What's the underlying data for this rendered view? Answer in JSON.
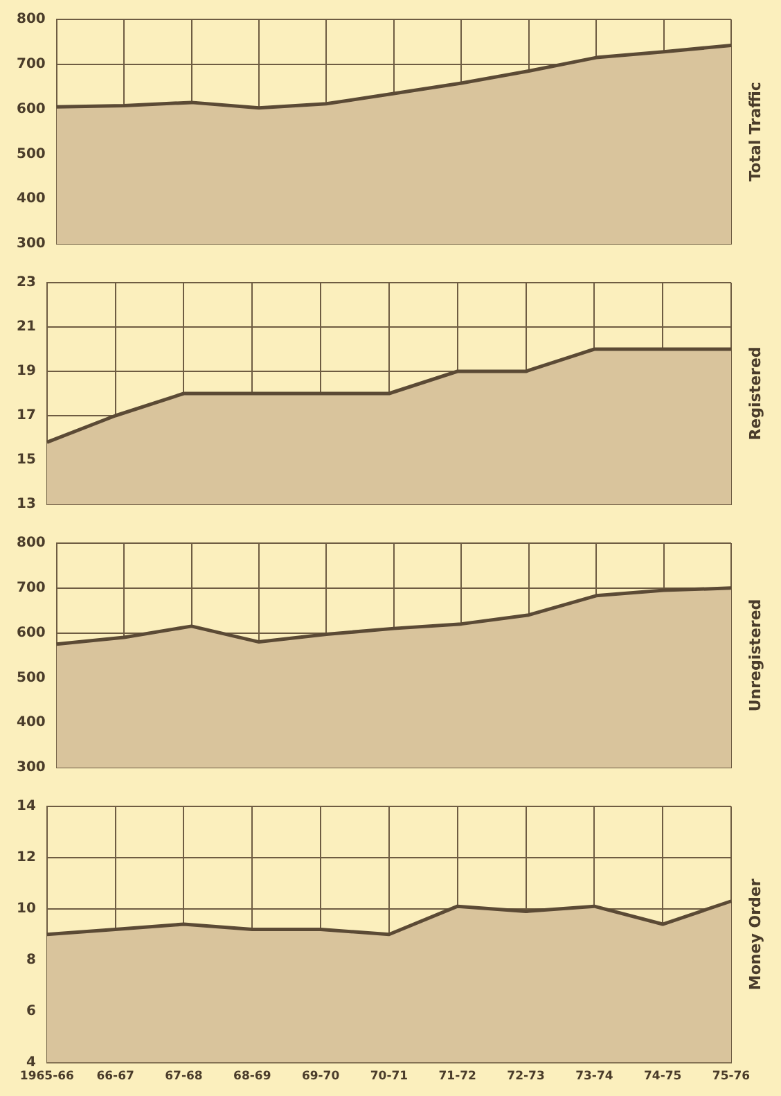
{
  "chart_data": [
    {
      "type": "area",
      "ylabel": "Total Traffic",
      "categories": [
        null,
        null,
        null,
        null,
        null,
        null,
        null,
        null,
        null,
        null,
        null
      ],
      "series": [
        {
          "color": "#d9c49c",
          "values": [
            605,
            608,
            615,
            603,
            612,
            635,
            658,
            685,
            715,
            728,
            742
          ]
        }
      ],
      "ylim": [
        300,
        800
      ],
      "yticks": [
        300,
        400,
        500,
        600,
        700,
        800
      ],
      "grid": true,
      "tick_labels": "y"
    },
    {
      "type": "area",
      "ylabel": "Registered",
      "categories": [
        null,
        null,
        null,
        null,
        null,
        null,
        null,
        null,
        null,
        null,
        null
      ],
      "series": [
        {
          "color": "#d9c49c",
          "values": [
            15.8,
            17,
            18,
            18,
            18,
            18,
            19,
            19,
            20,
            20,
            20
          ]
        }
      ],
      "ylim": [
        13,
        23
      ],
      "yticks": [
        13,
        15,
        17,
        19,
        21,
        23
      ],
      "grid": true,
      "tick_labels": "y"
    },
    {
      "type": "area",
      "ylabel": "Unregistered",
      "categories": [
        null,
        null,
        null,
        null,
        null,
        null,
        null,
        null,
        null,
        null,
        null
      ],
      "series": [
        {
          "color": "#d9c49c",
          "values": [
            575,
            590,
            615,
            580,
            597,
            610,
            620,
            640,
            683,
            695,
            700
          ]
        }
      ],
      "ylim": [
        300,
        800
      ],
      "yticks": [
        300,
        400,
        500,
        600,
        700,
        800
      ],
      "grid": true,
      "tick_labels": "y"
    },
    {
      "type": "area",
      "ylabel": "Money Order",
      "categories": [
        "1965-66",
        "66-67",
        "67-68",
        "68-69",
        "69-70",
        "70-71",
        "71-72",
        "72-73",
        "73-74",
        "74-75",
        "75-76"
      ],
      "series": [
        {
          "color": "#d9c49c",
          "values": [
            9.0,
            9.2,
            9.4,
            9.2,
            9.2,
            9.0,
            10.1,
            9.9,
            10.1,
            9.4,
            10.3
          ]
        }
      ],
      "ylim": [
        4,
        14
      ],
      "yticks": [
        4,
        6,
        8,
        10,
        12,
        14
      ],
      "grid": true
    }
  ]
}
